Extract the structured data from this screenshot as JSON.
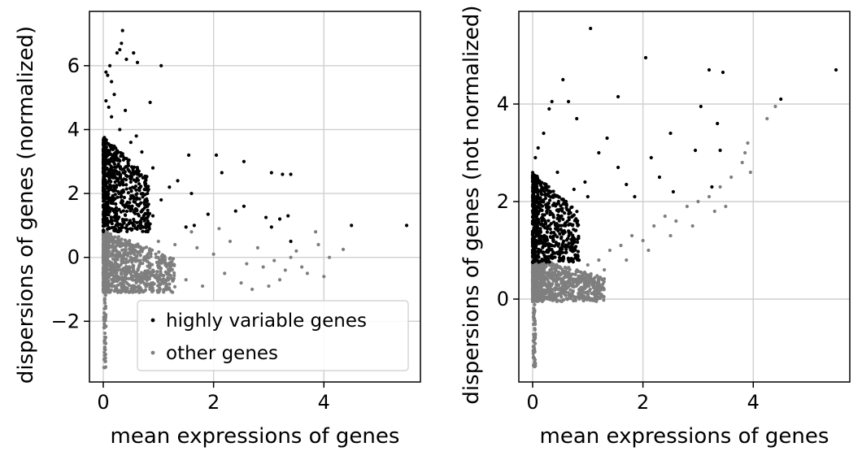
{
  "chart_data": [
    {
      "type": "scatter",
      "xlabel": "mean expressions of genes",
      "ylabel": "dispersions of genes (normalized)",
      "xlim": [
        -0.25,
        5.75
      ],
      "ylim": [
        -3.9,
        7.7
      ],
      "xticks": [
        0,
        2,
        4
      ],
      "yticks": [
        -2,
        0,
        2,
        4,
        6
      ],
      "grid": true,
      "legend": {
        "placement": "lower-center",
        "entries": [
          "highly variable genes",
          "other genes"
        ]
      },
      "series": [
        {
          "name": "highly variable genes",
          "color": "#000000",
          "points": [
            [
              0.05,
              5.8
            ],
            [
              0.08,
              5.7
            ],
            [
              0.12,
              6.0
            ],
            [
              0.15,
              5.5
            ],
            [
              0.25,
              6.4
            ],
            [
              0.3,
              6.5
            ],
            [
              0.33,
              6.7
            ],
            [
              0.35,
              7.1
            ],
            [
              0.42,
              6.2
            ],
            [
              0.55,
              6.4
            ],
            [
              0.62,
              6.1
            ],
            [
              1.05,
              6.0
            ],
            [
              0.2,
              5.1
            ],
            [
              0.1,
              4.7
            ],
            [
              0.05,
              4.9
            ],
            [
              0.15,
              4.4
            ],
            [
              0.4,
              4.6
            ],
            [
              0.85,
              4.85
            ],
            [
              0.3,
              4.0
            ],
            [
              0.5,
              3.6
            ],
            [
              0.6,
              3.8
            ],
            [
              0.7,
              3.3
            ],
            [
              0.2,
              3.1
            ],
            [
              0.45,
              3.0
            ],
            [
              0.9,
              2.8
            ],
            [
              1.2,
              2.2
            ],
            [
              1.55,
              3.2
            ],
            [
              2.05,
              3.2
            ],
            [
              2.15,
              2.65
            ],
            [
              2.55,
              3.0
            ],
            [
              3.05,
              2.65
            ],
            [
              3.25,
              2.6
            ],
            [
              3.4,
              2.6
            ],
            [
              1.35,
              2.4
            ],
            [
              1.6,
              2.0
            ],
            [
              1.05,
              1.8
            ],
            [
              1.9,
              1.35
            ],
            [
              2.4,
              1.45
            ],
            [
              2.55,
              1.6
            ],
            [
              2.95,
              1.25
            ],
            [
              3.2,
              1.2
            ],
            [
              3.35,
              1.3
            ],
            [
              3.05,
              0.95
            ],
            [
              3.4,
              0.5
            ],
            [
              4.5,
              1.0
            ],
            [
              5.5,
              1.0
            ],
            [
              1.5,
              0.95
            ],
            [
              1.65,
              1.0
            ],
            [
              0.9,
              1.3
            ],
            [
              0.75,
              1.55
            ],
            [
              0.8,
              2.0
            ],
            [
              0.65,
              2.3
            ],
            [
              0.55,
              2.6
            ]
          ],
          "dense_band": {
            "x_range": [
              0.0,
              0.85
            ],
            "y_range": [
              0.8,
              3.8
            ],
            "count": 650
          }
        },
        {
          "name": "other genes",
          "color": "#7f7f7f",
          "points": [
            [
              1.0,
              0.5
            ],
            [
              1.3,
              0.4
            ],
            [
              1.7,
              0.3
            ],
            [
              2.0,
              0.1
            ],
            [
              2.3,
              0.5
            ],
            [
              2.6,
              -0.2
            ],
            [
              2.9,
              -0.3
            ],
            [
              3.1,
              -0.1
            ],
            [
              3.3,
              -0.4
            ],
            [
              3.5,
              0.2
            ],
            [
              3.7,
              -0.5
            ],
            [
              3.9,
              0.4
            ],
            [
              4.0,
              -0.6
            ],
            [
              1.5,
              -0.7
            ],
            [
              1.8,
              -0.9
            ],
            [
              2.2,
              -0.5
            ],
            [
              2.5,
              -0.8
            ],
            [
              2.8,
              0.3
            ],
            [
              3.2,
              -0.7
            ],
            [
              3.6,
              -0.3
            ],
            [
              3.85,
              0.8
            ],
            [
              4.1,
              0.0
            ],
            [
              4.35,
              0.25
            ],
            [
              1.2,
              -1.0
            ],
            [
              2.7,
              -1.0
            ],
            [
              3.0,
              -0.9
            ],
            [
              3.4,
              0.0
            ],
            [
              2.1,
              0.9
            ],
            [
              1.6,
              0.8
            ],
            [
              0.9,
              -0.4
            ]
          ],
          "dense_band": {
            "x_range": [
              0.0,
              1.3
            ],
            "y_range": [
              -1.1,
              0.85
            ],
            "count": 900
          },
          "tail": {
            "x": 0.03,
            "y_range": [
              -3.5,
              -0.5
            ]
          }
        }
      ]
    },
    {
      "type": "scatter",
      "xlabel": "mean expressions of genes",
      "ylabel": "dispersions of genes (not normalized)",
      "xlim": [
        -0.25,
        5.75
      ],
      "ylim": [
        -1.7,
        5.9
      ],
      "xticks": [
        0,
        2,
        4
      ],
      "yticks": [
        0,
        2,
        4
      ],
      "grid": true,
      "series": [
        {
          "name": "highly variable genes",
          "color": "#000000",
          "points": [
            [
              0.05,
              2.9
            ],
            [
              0.1,
              3.1
            ],
            [
              0.2,
              3.4
            ],
            [
              0.3,
              3.9
            ],
            [
              0.35,
              4.05
            ],
            [
              0.55,
              4.5
            ],
            [
              0.65,
              4.05
            ],
            [
              1.05,
              5.55
            ],
            [
              0.8,
              3.7
            ],
            [
              0.95,
              2.4
            ],
            [
              1.2,
              3.0
            ],
            [
              1.35,
              3.3
            ],
            [
              1.55,
              4.15
            ],
            [
              1.55,
              2.7
            ],
            [
              2.05,
              4.95
            ],
            [
              2.15,
              2.9
            ],
            [
              2.3,
              2.5
            ],
            [
              2.5,
              3.4
            ],
            [
              2.55,
              2.2
            ],
            [
              2.95,
              3.05
            ],
            [
              3.05,
              3.95
            ],
            [
              3.2,
              4.7
            ],
            [
              3.35,
              3.6
            ],
            [
              3.4,
              3.05
            ],
            [
              3.45,
              4.65
            ],
            [
              3.25,
              2.3
            ],
            [
              4.5,
              4.1
            ],
            [
              5.5,
              4.7
            ],
            [
              1.7,
              2.35
            ],
            [
              1.85,
              2.1
            ],
            [
              1.0,
              2.1
            ],
            [
              0.75,
              2.25
            ],
            [
              0.6,
              2.0
            ],
            [
              0.45,
              2.6
            ]
          ],
          "dense_band": {
            "x_range": [
              0.0,
              0.85
            ],
            "y_range": [
              0.75,
              2.6
            ],
            "count": 650
          }
        },
        {
          "name": "other genes",
          "color": "#7f7f7f",
          "points": [
            [
              1.0,
              0.7
            ],
            [
              1.2,
              0.8
            ],
            [
              1.4,
              1.0
            ],
            [
              1.6,
              1.1
            ],
            [
              1.8,
              1.3
            ],
            [
              2.0,
              1.2
            ],
            [
              2.2,
              1.5
            ],
            [
              2.4,
              1.7
            ],
            [
              2.6,
              1.6
            ],
            [
              2.8,
              1.9
            ],
            [
              3.0,
              2.0
            ],
            [
              3.2,
              2.1
            ],
            [
              3.4,
              2.3
            ],
            [
              3.6,
              2.5
            ],
            [
              3.8,
              2.8
            ],
            [
              3.85,
              3.0
            ],
            [
              3.9,
              3.2
            ],
            [
              3.95,
              2.6
            ],
            [
              4.25,
              3.7
            ],
            [
              4.4,
              3.95
            ],
            [
              2.5,
              1.3
            ],
            [
              2.9,
              1.5
            ],
            [
              3.3,
              1.8
            ],
            [
              3.5,
              1.9
            ],
            [
              1.7,
              0.8
            ],
            [
              2.1,
              1.0
            ],
            [
              1.3,
              0.6
            ],
            [
              0.95,
              0.3
            ]
          ],
          "dense_band": {
            "x_range": [
              0.0,
              1.3
            ],
            "y_range": [
              -0.05,
              0.85
            ],
            "count": 900
          },
          "tail": {
            "x": 0.03,
            "y_range": [
              -1.4,
              -0.1
            ]
          }
        }
      ]
    }
  ]
}
